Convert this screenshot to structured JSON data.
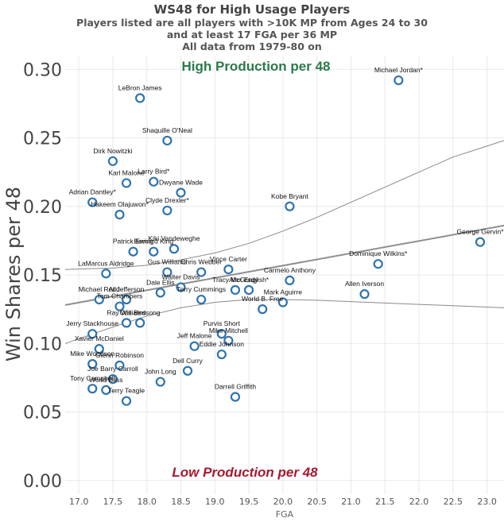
{
  "chart_data": {
    "type": "scatter",
    "title": "WS48 for High Usage Players",
    "subtitle": [
      "Players listed are all players with >10K MP from Ages 24 to 30",
      "and at least 17 FGA per 36 MP",
      "All data from 1979-80 on"
    ],
    "xlabel": "FGA",
    "ylabel": "Win Shares per 48",
    "xlim": [
      16.8,
      23.25
    ],
    "ylim": [
      -0.01,
      0.31
    ],
    "x_ticks": [
      "17.0",
      "17.5",
      "18.0",
      "18.5",
      "19.0",
      "19.5",
      "20.0",
      "20.5",
      "21.0",
      "21.5",
      "22.0",
      "22.5",
      "23.0"
    ],
    "y_ticks": [
      "0.00",
      "0.05",
      "0.10",
      "0.15",
      "0.20",
      "0.25",
      "0.30"
    ],
    "grid": true,
    "annotations": {
      "high": "High Production per 48",
      "low": "Low Production per 48"
    },
    "trend": {
      "line": [
        [
          16.8,
          0.128
        ],
        [
          23.25,
          0.186
        ]
      ],
      "upper_band": [
        [
          16.8,
          0.154
        ],
        [
          17.5,
          0.155
        ],
        [
          18.0,
          0.157
        ],
        [
          18.5,
          0.161
        ],
        [
          19.0,
          0.166
        ],
        [
          19.5,
          0.173
        ],
        [
          20.0,
          0.182
        ],
        [
          20.5,
          0.192
        ],
        [
          21.0,
          0.203
        ],
        [
          21.5,
          0.214
        ],
        [
          22.0,
          0.225
        ],
        [
          22.5,
          0.236
        ],
        [
          23.0,
          0.244
        ],
        [
          23.25,
          0.248
        ]
      ],
      "lower_band": [
        [
          16.8,
          0.1
        ],
        [
          17.5,
          0.112
        ],
        [
          18.0,
          0.12
        ],
        [
          18.5,
          0.126
        ],
        [
          19.0,
          0.13
        ],
        [
          19.5,
          0.132
        ],
        [
          20.0,
          0.132
        ],
        [
          20.5,
          0.1315
        ],
        [
          21.0,
          0.1305
        ],
        [
          21.5,
          0.1295
        ],
        [
          22.0,
          0.1285
        ],
        [
          22.5,
          0.1275
        ],
        [
          23.0,
          0.1265
        ],
        [
          23.25,
          0.126
        ]
      ]
    },
    "points": [
      {
        "name": "Michael Jordan*",
        "x": 21.7,
        "y": 0.292
      },
      {
        "name": "LeBron James",
        "x": 17.9,
        "y": 0.279
      },
      {
        "name": "Shaquille O'Neal",
        "x": 18.3,
        "y": 0.248
      },
      {
        "name": "Dirk Nowitzki",
        "x": 17.5,
        "y": 0.233
      },
      {
        "name": "Karl Malone",
        "x": 17.7,
        "y": 0.217
      },
      {
        "name": "Larry Bird*",
        "x": 18.1,
        "y": 0.218
      },
      {
        "name": "Dwyane Wade",
        "x": 18.5,
        "y": 0.21
      },
      {
        "name": "Adrian Dantley*",
        "x": 17.2,
        "y": 0.203
      },
      {
        "name": "Hakeem Olajuwon*",
        "x": 17.6,
        "y": 0.194
      },
      {
        "name": "Clyde Drexler*",
        "x": 18.3,
        "y": 0.197
      },
      {
        "name": "Kobe Bryant",
        "x": 20.1,
        "y": 0.2
      },
      {
        "name": "George Gervin*",
        "x": 22.9,
        "y": 0.174
      },
      {
        "name": "Patrick Ewing",
        "x": 17.8,
        "y": 0.167
      },
      {
        "name": "Bernard King",
        "x": 18.1,
        "y": 0.167
      },
      {
        "name": "Kiki Vandeweghe",
        "x": 18.4,
        "y": 0.169
      },
      {
        "name": "Dominique Wilkins*",
        "x": 21.4,
        "y": 0.158
      },
      {
        "name": "LaMarcus Aldridge",
        "x": 17.4,
        "y": 0.151
      },
      {
        "name": "Gus Williams",
        "x": 18.3,
        "y": 0.152
      },
      {
        "name": "Chris Webber",
        "x": 18.8,
        "y": 0.152
      },
      {
        "name": "Vince Carter",
        "x": 19.2,
        "y": 0.154
      },
      {
        "name": "Carmelo Anthony",
        "x": 20.1,
        "y": 0.146
      },
      {
        "name": "Walter Davis",
        "x": 18.5,
        "y": 0.141
      },
      {
        "name": "Dale Ellis",
        "x": 18.2,
        "y": 0.137
      },
      {
        "name": "Tracy McGrady",
        "x": 19.3,
        "y": 0.139
      },
      {
        "name": "Alex English*",
        "x": 19.5,
        "y": 0.139
      },
      {
        "name": "Allen Iverson",
        "x": 21.2,
        "y": 0.136
      },
      {
        "name": "Michael Redd",
        "x": 17.3,
        "y": 0.132
      },
      {
        "name": "Al Jefferson",
        "x": 17.7,
        "y": 0.132
      },
      {
        "name": "Tom Chambers",
        "x": 17.6,
        "y": 0.127
      },
      {
        "name": "Terry Cummings",
        "x": 18.8,
        "y": 0.132
      },
      {
        "name": "Mark Aguirre",
        "x": 20.0,
        "y": 0.13
      },
      {
        "name": "World B. Free",
        "x": 19.7,
        "y": 0.125
      },
      {
        "name": "Ray Williams",
        "x": 17.7,
        "y": 0.115
      },
      {
        "name": "Otis Birdsong",
        "x": 17.9,
        "y": 0.115
      },
      {
        "name": "Jerry Stackhouse",
        "x": 17.2,
        "y": 0.107
      },
      {
        "name": "Purvis Short",
        "x": 19.1,
        "y": 0.107
      },
      {
        "name": "Mike Mitchell",
        "x": 19.2,
        "y": 0.102
      },
      {
        "name": "Jeff Malone",
        "x": 18.7,
        "y": 0.098
      },
      {
        "name": "Eddie Johnson",
        "x": 19.1,
        "y": 0.092
      },
      {
        "name": "Xavier McDaniel",
        "x": 17.3,
        "y": 0.096
      },
      {
        "name": "Mike Woodson",
        "x": 17.2,
        "y": 0.085
      },
      {
        "name": "Glenn Robinson",
        "x": 17.6,
        "y": 0.084
      },
      {
        "name": "Dell Curry",
        "x": 18.6,
        "y": 0.08
      },
      {
        "name": "Joe Barry Carroll",
        "x": 17.5,
        "y": 0.074
      },
      {
        "name": "John Long",
        "x": 18.2,
        "y": 0.072
      },
      {
        "name": "Tony Campbell",
        "x": 17.2,
        "y": 0.067
      },
      {
        "name": "World Bliss",
        "x": 17.4,
        "y": 0.066
      },
      {
        "name": "Terry Teagle",
        "x": 17.7,
        "y": 0.058
      },
      {
        "name": "Darrell Griffith",
        "x": 19.3,
        "y": 0.061
      }
    ]
  }
}
